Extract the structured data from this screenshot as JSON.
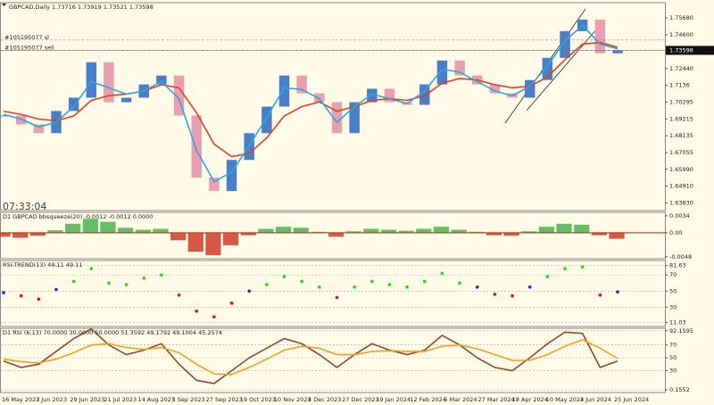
{
  "chart_data": [
    {
      "type": "candlestick",
      "title": "GBPCAD,Daily  1.73716 1.73919 1.73521 1.73598",
      "values": [
        1.6943,
        1.6886,
        1.683,
        1.6972,
        1.7057,
        1.7284,
        1.7028,
        1.7057,
        1.7142,
        1.7199,
        1.6943,
        1.6546,
        1.646,
        1.6659,
        1.683,
        1.7,
        1.7199,
        1.7085,
        1.7028,
        1.683,
        1.7028,
        1.7114,
        1.7028,
        1.7011,
        1.7142,
        1.7295,
        1.7199,
        1.7142,
        1.7085,
        1.7057,
        1.717,
        1.7312,
        1.7483,
        1.7557,
        1.7341,
        1.736
      ],
      "up_color": "#4a7fc8",
      "down_color": "#e8a0b0",
      "series": [
        {
          "color": "#e04020",
          "values": [
            1.697,
            1.695,
            1.692,
            1.691,
            1.694,
            1.704,
            1.707,
            1.708,
            1.71,
            1.714,
            1.712,
            1.696,
            1.676,
            1.668,
            1.67,
            1.68,
            1.694,
            1.7,
            1.703,
            1.697,
            1.7,
            1.704,
            1.705,
            1.704,
            1.707,
            1.715,
            1.718,
            1.717,
            1.714,
            1.712,
            1.713,
            1.719,
            1.73,
            1.74,
            1.741,
            1.738
          ]
        },
        {
          "color": "#29a8e0",
          "values": [
            1.695,
            1.692,
            1.687,
            1.69,
            1.7,
            1.716,
            1.712,
            1.708,
            1.71,
            1.716,
            1.705,
            1.672,
            1.652,
            1.658,
            1.675,
            1.693,
            1.712,
            1.711,
            1.705,
            1.69,
            1.7,
            1.708,
            1.705,
            1.702,
            1.71,
            1.724,
            1.722,
            1.716,
            1.71,
            1.707,
            1.713,
            1.726,
            1.742,
            1.752,
            1.74,
            1.737
          ]
        }
      ],
      "ylim": [
        1.6335,
        1.7665
      ],
      "yticks": [
        {
          "value": 1.7568,
          "label": "1.75680"
        },
        {
          "value": 1.746,
          "label": "1.74600"
        },
        {
          "value": 1.7244,
          "label": "1.72440"
        },
        1.7136,
        1.70295,
        1.69215,
        1.68135,
        1.67055,
        {
          "value": 1.6599,
          "label": "1.65990"
        },
        {
          "value": 1.6491,
          "label": "1.64910"
        },
        {
          "value": 1.6383,
          "label": "1.63830"
        }
      ],
      "last_price": 1.73598,
      "orders": [
        {
          "label": "#105195077 sl",
          "value": 1.7426
        },
        {
          "label": "#105195077 sell",
          "value": 1.736
        }
      ],
      "clock": "07:33:04"
    },
    {
      "type": "bar",
      "title": "D1 GBPCAD bbsqueeze(20) -0.0012 -0.0012 0.0000",
      "values": [
        -0.0008,
        -0.001,
        -0.0006,
        0.0005,
        0.0018,
        0.0028,
        0.0022,
        0.001,
        0.0006,
        0.0008,
        -0.0015,
        -0.0038,
        -0.0045,
        -0.0025,
        -0.0005,
        0.0008,
        0.0012,
        0.001,
        0.0002,
        -0.0008,
        0.0003,
        0.0008,
        0.0006,
        0.0004,
        0.0008,
        0.0012,
        0.0006,
        0.0002,
        -0.0005,
        -0.0006,
        0.0003,
        0.0012,
        0.0018,
        0.0016,
        -0.0005,
        -0.0012
      ],
      "up_color": "#3cb043",
      "down_color": "#d0301c",
      "ylim": [
        -0.0052,
        0.0041
      ],
      "yticks": [
        0.0034,
        {
          "value": 0,
          "label": "0.00"
        },
        -0.0048
      ]
    },
    {
      "type": "scatter",
      "title": "RSI-TREND(13) 49.11 49.11",
      "values": [
        48,
        44,
        40,
        52,
        62,
        78,
        60,
        58,
        66,
        70,
        45,
        25,
        18,
        35,
        50,
        58,
        68,
        62,
        55,
        42,
        55,
        62,
        58,
        55,
        62,
        72,
        60,
        55,
        46,
        44,
        55,
        68,
        78,
        80,
        45,
        49
      ],
      "point_colors": [
        "#1030e0",
        "#e01010",
        "#e01010",
        "#1030e0",
        "#10e010",
        "#10e010",
        "#10e010",
        "#10e010",
        "#10e010",
        "#10e010",
        "#e01010",
        "#e01010",
        "#e01010",
        "#e01010",
        "#1030e0",
        "#10e010",
        "#10e010",
        "#10e010",
        "#10e010",
        "#e01010",
        "#10e010",
        "#10e010",
        "#10e010",
        "#10e010",
        "#10e010",
        "#10e010",
        "#10e010",
        "#1030e0",
        "#e01010",
        "#e01010",
        "#1030e0",
        "#10e010",
        "#10e010",
        "#10e010",
        "#e01010",
        "#1030e0"
      ],
      "ylim": [
        6,
        88
      ],
      "yticks": [
        81.63,
        70,
        50,
        30,
        11.03
      ],
      "grid": true
    },
    {
      "type": "line",
      "title": "D1 RSI (6,13) 70.0000 30.0000 50.0000 51.3592 49.1792 49.1004 45.2574",
      "series": [
        {
          "color": "#8b4a2a",
          "values": [
            45,
            35,
            40,
            60,
            80,
            95,
            70,
            55,
            62,
            72,
            40,
            15,
            10,
            30,
            50,
            65,
            80,
            72,
            55,
            35,
            55,
            72,
            62,
            55,
            62,
            85,
            70,
            50,
            35,
            30,
            50,
            72,
            90,
            88,
            35,
            45
          ]
        },
        {
          "color": "#f0a020",
          "values": [
            48,
            44,
            42,
            48,
            58,
            70,
            72,
            66,
            63,
            66,
            58,
            40,
            25,
            24,
            35,
            48,
            62,
            68,
            65,
            55,
            55,
            60,
            61,
            60,
            60,
            68,
            70,
            64,
            55,
            46,
            46,
            55,
            68,
            78,
            65,
            49
          ]
        }
      ],
      "ylim": [
        -4,
        96
      ],
      "yticks": [
        92.1595,
        70,
        50,
        30,
        0.1552
      ],
      "grid": true
    }
  ],
  "time_axis": [
    "16 May 2023",
    "7 Jun 2023",
    "29 Jun 2023",
    "21 Jul 2023",
    "14 Aug 2023",
    "5 Sep 2023",
    "27 Sep 2023",
    "19 Oct 2023",
    "10 Nov 2023",
    "4 Dec 2023",
    "27 Dec 2023",
    "19 Jan 2024",
    "12 Feb 2024",
    "5 Mar 2024",
    "27 Mar 2024",
    "18 Apr 2024",
    "10 May 2024",
    "3 Jun 2024",
    "25 Jun 2024"
  ]
}
